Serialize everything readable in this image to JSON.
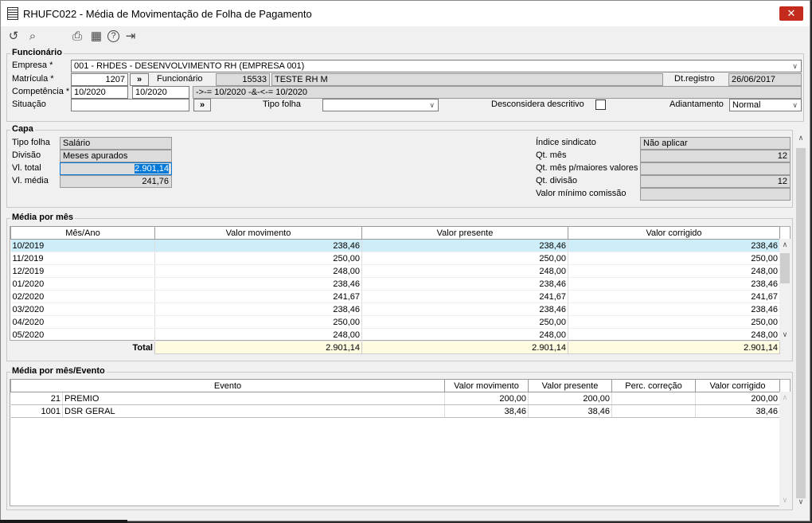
{
  "window": {
    "title": "RHUFC022 - Média de Movimentação de Folha de Pagamento",
    "close": "✕"
  },
  "toolbar": [
    {
      "icon": "undo-icon",
      "glyph": "↺"
    },
    {
      "icon": "search-icon",
      "glyph": "⌕"
    },
    {
      "icon": "print-icon",
      "glyph": "⎙"
    },
    {
      "icon": "calendar-icon",
      "glyph": "▦"
    },
    {
      "icon": "help-icon",
      "glyph": "?"
    },
    {
      "icon": "exit-icon",
      "glyph": "⇥"
    }
  ],
  "funcionario": {
    "legend": "Funcionário",
    "empresa_label": "Empresa *",
    "empresa": "001 - RHDES - DESENVOLVIMENTO RH (EMPRESA 001)",
    "matricula_label": "Matrícula *",
    "matricula": "1207",
    "lookup": "»",
    "funcionario_label": "Funcionário",
    "funcionario_code": "15533",
    "funcionario_name": "TESTE RH M",
    "dtregistro_label": "Dt.registro",
    "dtregistro": "26/06/2017",
    "competencia_label": "Competência *",
    "comp_from": "10/2020",
    "comp_to": "10/2020",
    "filter": "->-= 10/2020 -&-<-= 10/2020",
    "situacao_label": "Situação",
    "situacao": "",
    "tipofolha_label": "Tipo folha",
    "tipofolha": "",
    "desconsidera_label": "Desconsidera descritivo",
    "desconsidera_checked": false,
    "adiantamento_label": "Adiantamento",
    "adiantamento": "Normal"
  },
  "capa": {
    "legend": "Capa",
    "tipofolha_label": "Tipo folha",
    "tipofolha": "Salário",
    "divisao_label": "Divisão",
    "divisao": "Meses apurados",
    "vltotal_label": "Vl. total",
    "vltotal": "2.901,14",
    "vlmedia_label": "Vl. média",
    "vlmedia": "241,76",
    "indice_label": "Índice sindicato",
    "indice": "Não aplicar",
    "qtmes_label": "Qt. mês",
    "qtmes": "12",
    "qtmaiores_label": "Qt. mês p/maiores valores",
    "qtmaiores": "",
    "qtdivisao_label": "Qt. divisão",
    "qtdivisao": "12",
    "valormin_label": "Valor mínimo comissão",
    "valormin": ""
  },
  "media_mes": {
    "legend": "Média por mês",
    "headers": [
      "Mês/Ano",
      "Valor movimento",
      "Valor presente",
      "Valor corrigido"
    ],
    "rows": [
      [
        "10/2019",
        "238,46",
        "238,46",
        "238,46"
      ],
      [
        "11/2019",
        "250,00",
        "250,00",
        "250,00"
      ],
      [
        "12/2019",
        "248,00",
        "248,00",
        "248,00"
      ],
      [
        "01/2020",
        "238,46",
        "238,46",
        "238,46"
      ],
      [
        "02/2020",
        "241,67",
        "241,67",
        "241,67"
      ],
      [
        "03/2020",
        "238,46",
        "238,46",
        "238,46"
      ],
      [
        "04/2020",
        "250,00",
        "250,00",
        "250,00"
      ],
      [
        "05/2020",
        "248,00",
        "248,00",
        "248,00"
      ]
    ],
    "total_label": "Total",
    "totals": [
      "2.901,14",
      "2.901,14",
      "2.901,14"
    ]
  },
  "media_evento": {
    "legend": "Média por mês/Evento",
    "headers": [
      "Evento",
      "Valor movimento",
      "Valor presente",
      "Perc. correção",
      "Valor corrigido"
    ],
    "rows": [
      [
        "21",
        "PREMIO",
        "200,00",
        "200,00",
        "",
        "200,00"
      ],
      [
        "1001",
        "DSR GERAL",
        "38,46",
        "38,46",
        "",
        "38,46"
      ]
    ]
  }
}
